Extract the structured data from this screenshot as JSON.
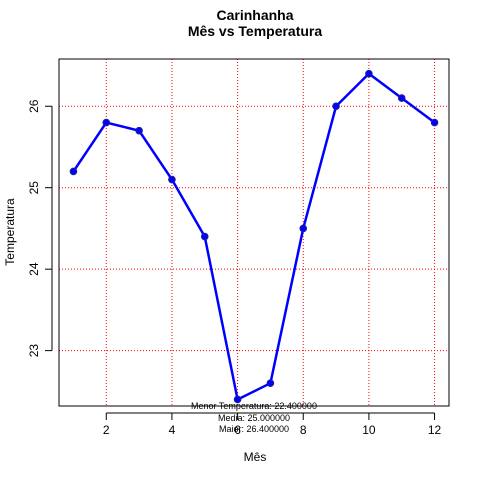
{
  "chart_data": {
    "type": "line",
    "title": "Carinhanha",
    "subtitle": "Mês vs Temperatura",
    "xlabel": "Mês",
    "ylabel": "Temperatura",
    "x": [
      1,
      2,
      3,
      4,
      5,
      6,
      7,
      8,
      9,
      10,
      11,
      12
    ],
    "series": [
      {
        "values": [
          25.2,
          25.8,
          25.7,
          25.1,
          24.4,
          22.4,
          22.6,
          24.5,
          26.0,
          26.4,
          26.1,
          25.8
        ],
        "color": "#0000ff"
      }
    ],
    "xlim": [
      0.56,
      12.44
    ],
    "ylim": [
      22.32,
      26.58
    ],
    "xticks": [
      2,
      4,
      6,
      8,
      10,
      12
    ],
    "yticks": [
      23,
      24,
      25,
      26
    ],
    "grid": true,
    "grid_color": "#ff0000",
    "annotations": [
      "Menor Temperatura: 22.400000",
      "Media: 25.000000",
      "Maior: 26.400000"
    ]
  }
}
